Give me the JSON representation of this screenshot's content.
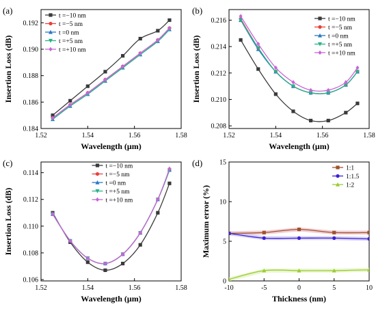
{
  "chart_data": [
    {
      "panel": "(a)",
      "type": "line",
      "xlabel": "Wavelength (μm)",
      "ylabel": "Insertion Loss (dB)",
      "xlim": [
        1.52,
        1.58
      ],
      "ylim": [
        0.184,
        0.193
      ],
      "xticks": [
        1.52,
        1.54,
        1.56,
        1.58
      ],
      "yticks": [
        0.184,
        0.186,
        0.188,
        0.19,
        0.192
      ],
      "tick_decimals_x": 2,
      "tick_decimals_y": 3,
      "legend": "top-left",
      "series": [
        {
          "name": "t =−10 nm",
          "color": "#3a3a3a",
          "marker": "square",
          "x": [
            1.525,
            1.5325,
            1.54,
            1.5475,
            1.555,
            1.5625,
            1.57,
            1.575
          ],
          "y": [
            0.185,
            0.1861,
            0.1872,
            0.1883,
            0.1895,
            0.1908,
            0.1914,
            0.1922
          ]
        },
        {
          "name": "t =−5 nm",
          "color": "#e8403a",
          "marker": "circle",
          "x": [
            1.525,
            1.5325,
            1.54,
            1.5475,
            1.555,
            1.5625,
            1.57,
            1.575
          ],
          "y": [
            0.1848,
            0.1858,
            0.1867,
            0.1877,
            0.1887,
            0.1897,
            0.1907,
            0.1916
          ]
        },
        {
          "name": "t =0 nm",
          "color": "#2a77c9",
          "marker": "triangle",
          "x": [
            1.525,
            1.5325,
            1.54,
            1.5475,
            1.555,
            1.5625,
            1.57,
            1.575
          ],
          "y": [
            0.1847,
            0.1857,
            0.1866,
            0.1876,
            0.1886,
            0.1896,
            0.1906,
            0.1915
          ]
        },
        {
          "name": "t =+5 nm",
          "color": "#27b38a",
          "marker": "triangle-down",
          "x": [
            1.525,
            1.5325,
            1.54,
            1.5475,
            1.555,
            1.5625,
            1.57,
            1.575
          ],
          "y": [
            0.1847,
            0.1857,
            0.1866,
            0.1876,
            0.1886,
            0.1896,
            0.1906,
            0.1915
          ]
        },
        {
          "name": "t =+10 nm",
          "color": "#c766d6",
          "marker": "diamond",
          "x": [
            1.525,
            1.5325,
            1.54,
            1.5475,
            1.555,
            1.5625,
            1.57,
            1.575
          ],
          "y": [
            0.1848,
            0.1858,
            0.1867,
            0.1877,
            0.1887,
            0.1897,
            0.1907,
            0.1916
          ]
        }
      ]
    },
    {
      "panel": "(b)",
      "type": "line",
      "xlabel": "Wavelength (μm)",
      "ylabel": "Insertion Loss (dB)",
      "xlim": [
        1.52,
        1.58
      ],
      "ylim": [
        0.2078,
        0.2168
      ],
      "xticks": [
        1.52,
        1.54,
        1.56,
        1.58
      ],
      "yticks": [
        0.208,
        0.21,
        0.212,
        0.214,
        0.216
      ],
      "tick_decimals_x": 2,
      "tick_decimals_y": 3,
      "legend": "top-right",
      "series": [
        {
          "name": "t =−10 nm",
          "color": "#3a3a3a",
          "marker": "square",
          "x": [
            1.525,
            1.5325,
            1.54,
            1.5475,
            1.555,
            1.5625,
            1.57,
            1.575
          ],
          "y": [
            0.2145,
            0.2123,
            0.2104,
            0.2091,
            0.2084,
            0.2084,
            0.209,
            0.2097
          ]
        },
        {
          "name": "t =−5 nm",
          "color": "#e8403a",
          "marker": "circle",
          "x": [
            1.525,
            1.5325,
            1.54,
            1.5475,
            1.555,
            1.5625,
            1.57,
            1.575
          ],
          "y": [
            0.2161,
            0.2139,
            0.2121,
            0.211,
            0.2105,
            0.2105,
            0.2111,
            0.2121
          ]
        },
        {
          "name": "t =0 nm",
          "color": "#2a77c9",
          "marker": "triangle",
          "x": [
            1.525,
            1.5325,
            1.54,
            1.5475,
            1.555,
            1.5625,
            1.57,
            1.575
          ],
          "y": [
            0.216,
            0.2138,
            0.2121,
            0.211,
            0.2105,
            0.2105,
            0.2111,
            0.2121
          ]
        },
        {
          "name": "t =+5 nm",
          "color": "#27b38a",
          "marker": "triangle-down",
          "x": [
            1.525,
            1.5325,
            1.54,
            1.5475,
            1.555,
            1.5625,
            1.57,
            1.575
          ],
          "y": [
            0.216,
            0.2139,
            0.2121,
            0.211,
            0.2105,
            0.2105,
            0.2111,
            0.2121
          ]
        },
        {
          "name": "t =+10 nm",
          "color": "#c766d6",
          "marker": "diamond",
          "x": [
            1.525,
            1.5325,
            1.54,
            1.5475,
            1.555,
            1.5625,
            1.57,
            1.575
          ],
          "y": [
            0.2163,
            0.2142,
            0.2124,
            0.2113,
            0.2107,
            0.2107,
            0.2113,
            0.2124
          ]
        }
      ]
    },
    {
      "panel": "(c)",
      "type": "line",
      "xlabel": "Wavelength (μm)",
      "ylabel": "Insertion Loss (dB)",
      "xlim": [
        1.52,
        1.58
      ],
      "ylim": [
        0.1059,
        0.1148
      ],
      "xticks": [
        1.52,
        1.54,
        1.56,
        1.58
      ],
      "yticks": [
        0.106,
        0.108,
        0.11,
        0.112,
        0.114
      ],
      "tick_decimals_x": 2,
      "tick_decimals_y": 3,
      "legend": "top-center",
      "series": [
        {
          "name": "t =−10 nm",
          "color": "#3a3a3a",
          "marker": "square",
          "x": [
            1.525,
            1.5325,
            1.54,
            1.5475,
            1.555,
            1.5625,
            1.57,
            1.575
          ],
          "y": [
            0.111,
            0.1088,
            0.1073,
            0.1067,
            0.1072,
            0.1086,
            0.111,
            0.1132
          ]
        },
        {
          "name": "t =−5 nm",
          "color": "#e8403a",
          "marker": "circle",
          "x": [
            1.525,
            1.5325,
            1.54,
            1.5475,
            1.555,
            1.5625,
            1.57,
            1.575
          ],
          "y": [
            0.1109,
            0.1089,
            0.1076,
            0.1072,
            0.1079,
            0.1095,
            0.112,
            0.1142
          ]
        },
        {
          "name": "t =0 nm",
          "color": "#2a77c9",
          "marker": "triangle",
          "x": [
            1.525,
            1.5325,
            1.54,
            1.5475,
            1.555,
            1.5625,
            1.57,
            1.575
          ],
          "y": [
            0.1109,
            0.1089,
            0.1076,
            0.1072,
            0.1079,
            0.1095,
            0.112,
            0.1142
          ]
        },
        {
          "name": "t =+5 nm",
          "color": "#27b38a",
          "marker": "triangle-down",
          "x": [
            1.525,
            1.5325,
            1.54,
            1.5475,
            1.555,
            1.5625,
            1.57,
            1.575
          ],
          "y": [
            0.1109,
            0.1089,
            0.1076,
            0.1072,
            0.1079,
            0.1095,
            0.112,
            0.1142
          ]
        },
        {
          "name": "t =+10 nm",
          "color": "#c766d6",
          "marker": "diamond",
          "x": [
            1.525,
            1.5325,
            1.54,
            1.5475,
            1.555,
            1.5625,
            1.57,
            1.575
          ],
          "y": [
            0.1109,
            0.1089,
            0.1076,
            0.1072,
            0.1079,
            0.1095,
            0.112,
            0.1143
          ]
        }
      ]
    },
    {
      "panel": "(d)",
      "type": "line",
      "xlabel": "Thickness (nm)",
      "ylabel": "Maximum error (%)",
      "xlim": [
        -10,
        10
      ],
      "ylim": [
        0,
        15
      ],
      "xticks": [
        -10,
        -5,
        0,
        5,
        10
      ],
      "yticks": [
        0,
        5,
        10,
        15
      ],
      "tick_decimals_x": 0,
      "tick_decimals_y": 0,
      "legend": "top-right",
      "band": true,
      "series": [
        {
          "name": "1:1",
          "color": "#a0522d",
          "band_color": "#e9b9c2",
          "marker": "square",
          "x": [
            -10,
            -5,
            0,
            5,
            10
          ],
          "y": [
            6.0,
            6.1,
            6.5,
            6.1,
            6.1
          ]
        },
        {
          "name": "1:1.5",
          "color": "#3b1fd6",
          "band_color": "#c6c0f2",
          "marker": "circle",
          "x": [
            -10,
            -5,
            0,
            5,
            10
          ],
          "y": [
            6.0,
            5.4,
            5.4,
            5.4,
            5.3
          ]
        },
        {
          "name": "1:2",
          "color": "#9acd32",
          "band_color": "#e2f2bd",
          "marker": "triangle",
          "x": [
            -10,
            -5,
            0,
            5,
            10
          ],
          "y": [
            0.2,
            1.3,
            1.3,
            1.3,
            1.4
          ]
        }
      ]
    }
  ]
}
